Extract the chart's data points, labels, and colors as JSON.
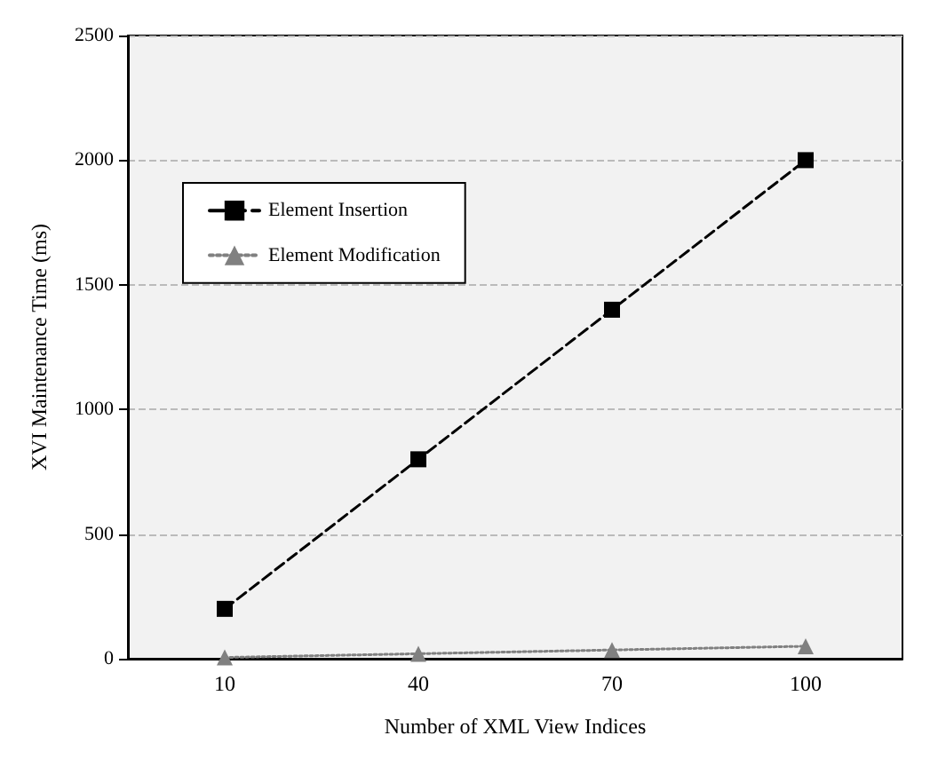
{
  "chart_data": {
    "type": "line",
    "xlabel": "Number of XML View Indices",
    "ylabel": "XVI Maintenance Time (ms)",
    "categories": [
      "10",
      "40",
      "70",
      "100"
    ],
    "series": [
      {
        "name": "Element Insertion",
        "color": "#000000",
        "values": [
          200,
          800,
          1400,
          2000
        ],
        "marker": "square",
        "line_style": "dashed"
      },
      {
        "name": "Element Modification",
        "color": "#808080",
        "values": [
          5,
          20,
          35,
          50
        ],
        "marker": "triangle",
        "line_style": "dotted"
      }
    ],
    "ylim": [
      0,
      2500
    ],
    "yticks": [
      0,
      500,
      1000,
      1500,
      2000,
      2500
    ],
    "grid": "y",
    "legend": "top left"
  }
}
